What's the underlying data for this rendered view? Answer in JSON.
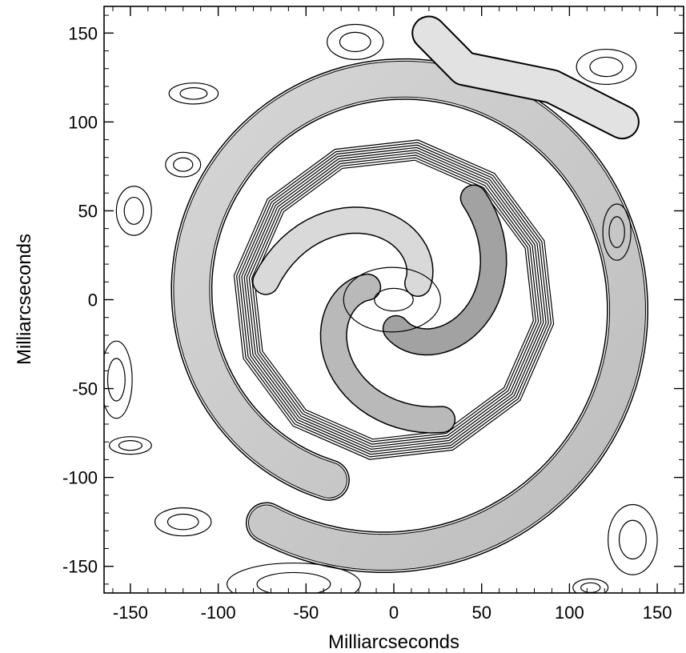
{
  "chart_data": {
    "type": "contour",
    "xlabel": "Milliarcseconds",
    "ylabel": "Milliarcseconds",
    "xlim": [
      -165,
      165
    ],
    "ylim": [
      -165,
      165
    ],
    "xticks": [
      -150,
      -100,
      -50,
      0,
      50,
      100,
      150
    ],
    "yticks": [
      -150,
      -100,
      -50,
      0,
      50,
      100,
      150
    ],
    "xtick_labels": [
      "-150",
      "-100",
      "-50",
      "0",
      "50",
      "100",
      "150"
    ],
    "ytick_labels": [
      "-150",
      "-100",
      "-50",
      "0",
      "50",
      "100",
      "150"
    ],
    "minor_tick_step": 10,
    "grid": false,
    "colormap": "greyscale, darker = higher intensity",
    "features": {
      "core": {
        "center": [
          0,
          0
        ],
        "radius": 92
      },
      "inner_arm_ring": {
        "start_angle_deg": 250,
        "end_angle_deg": -120,
        "radius_start": 108,
        "radius_end": 145,
        "width_mas": 20
      },
      "outer_arm_branch": {
        "points": [
          [
            20,
            150
          ],
          [
            40,
            130
          ],
          [
            90,
            120
          ],
          [
            130,
            100
          ]
        ]
      },
      "blobs": [
        {
          "x": -22,
          "y": 145,
          "rx": 16,
          "ry": 10
        },
        {
          "x": -120,
          "y": 76,
          "rx": 10,
          "ry": 7
        },
        {
          "x": -114,
          "y": 116,
          "rx": 14,
          "ry": 6
        },
        {
          "x": 121,
          "y": 131,
          "rx": 17,
          "ry": 10
        },
        {
          "x": 127,
          "y": 38,
          "rx": 8,
          "ry": 16
        },
        {
          "x": -148,
          "y": 50,
          "rx": 10,
          "ry": 14
        },
        {
          "x": -158,
          "y": -45,
          "rx": 9,
          "ry": 22
        },
        {
          "x": -150,
          "y": -82,
          "rx": 12,
          "ry": 5
        },
        {
          "x": -120,
          "y": -125,
          "rx": 16,
          "ry": 8
        },
        {
          "x": -57,
          "y": -160,
          "rx": 38,
          "ry": 12
        },
        {
          "x": 136,
          "y": -135,
          "rx": 14,
          "ry": 20
        },
        {
          "x": 112,
          "y": -162,
          "rx": 10,
          "ry": 5
        }
      ]
    }
  }
}
